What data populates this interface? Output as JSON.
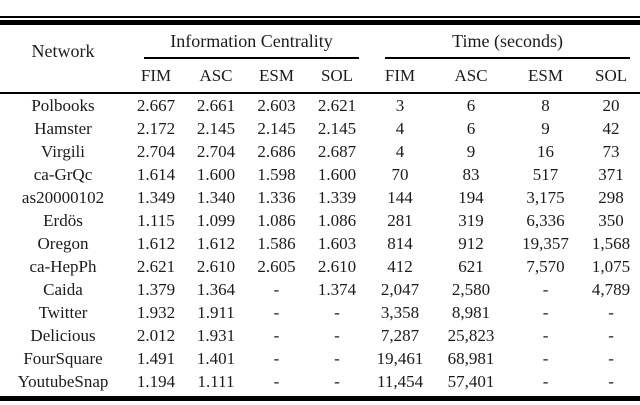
{
  "colors": {
    "background": "#ffffff",
    "text": "#1b1b1b",
    "rule": "#000000"
  },
  "table": {
    "network_label": "Network",
    "group1_label": "Information Centrality",
    "group2_label": "Time (seconds)",
    "subcols": [
      "FIM",
      "ASC",
      "ESM",
      "SOL",
      "FIM",
      "ASC",
      "ESM",
      "SOL"
    ],
    "rows": [
      {
        "network": "Polbooks",
        "values": [
          "2.667",
          "2.661",
          "2.603",
          "2.621",
          "3",
          "6",
          "8",
          "20"
        ]
      },
      {
        "network": "Hamster",
        "values": [
          "2.172",
          "2.145",
          "2.145",
          "2.145",
          "4",
          "6",
          "9",
          "42"
        ]
      },
      {
        "network": "Virgili",
        "values": [
          "2.704",
          "2.704",
          "2.686",
          "2.687",
          "4",
          "9",
          "16",
          "73"
        ]
      },
      {
        "network": "ca-GrQc",
        "values": [
          "1.614",
          "1.600",
          "1.598",
          "1.600",
          "70",
          "83",
          "517",
          "371"
        ]
      },
      {
        "network": "as20000102",
        "values": [
          "1.349",
          "1.340",
          "1.336",
          "1.339",
          "144",
          "194",
          "3,175",
          "298"
        ]
      },
      {
        "network": "Erdös",
        "values": [
          "1.115",
          "1.099",
          "1.086",
          "1.086",
          "281",
          "319",
          "6,336",
          "350"
        ]
      },
      {
        "network": "Oregon",
        "values": [
          "1.612",
          "1.612",
          "1.586",
          "1.603",
          "814",
          "912",
          "19,357",
          "1,568"
        ]
      },
      {
        "network": "ca-HepPh",
        "values": [
          "2.621",
          "2.610",
          "2.605",
          "2.610",
          "412",
          "621",
          "7,570",
          "1,075"
        ]
      },
      {
        "network": "Caida",
        "values": [
          "1.379",
          "1.364",
          "-",
          "1.374",
          "2,047",
          "2,580",
          "-",
          "4,789"
        ]
      },
      {
        "network": "Twitter",
        "values": [
          "1.932",
          "1.911",
          "-",
          "-",
          "3,358",
          "8,981",
          "-",
          "-"
        ]
      },
      {
        "network": "Delicious",
        "values": [
          "2.012",
          "1.931",
          "-",
          "-",
          "7,287",
          "25,823",
          "-",
          "-"
        ]
      },
      {
        "network": "FourSquare",
        "values": [
          "1.491",
          "1.401",
          "-",
          "-",
          "19,461",
          "68,981",
          "-",
          "-"
        ]
      },
      {
        "network": "YoutubeSnap",
        "values": [
          "1.194",
          "1.111",
          "-",
          "-",
          "11,454",
          "57,401",
          "-",
          "-"
        ]
      }
    ]
  }
}
